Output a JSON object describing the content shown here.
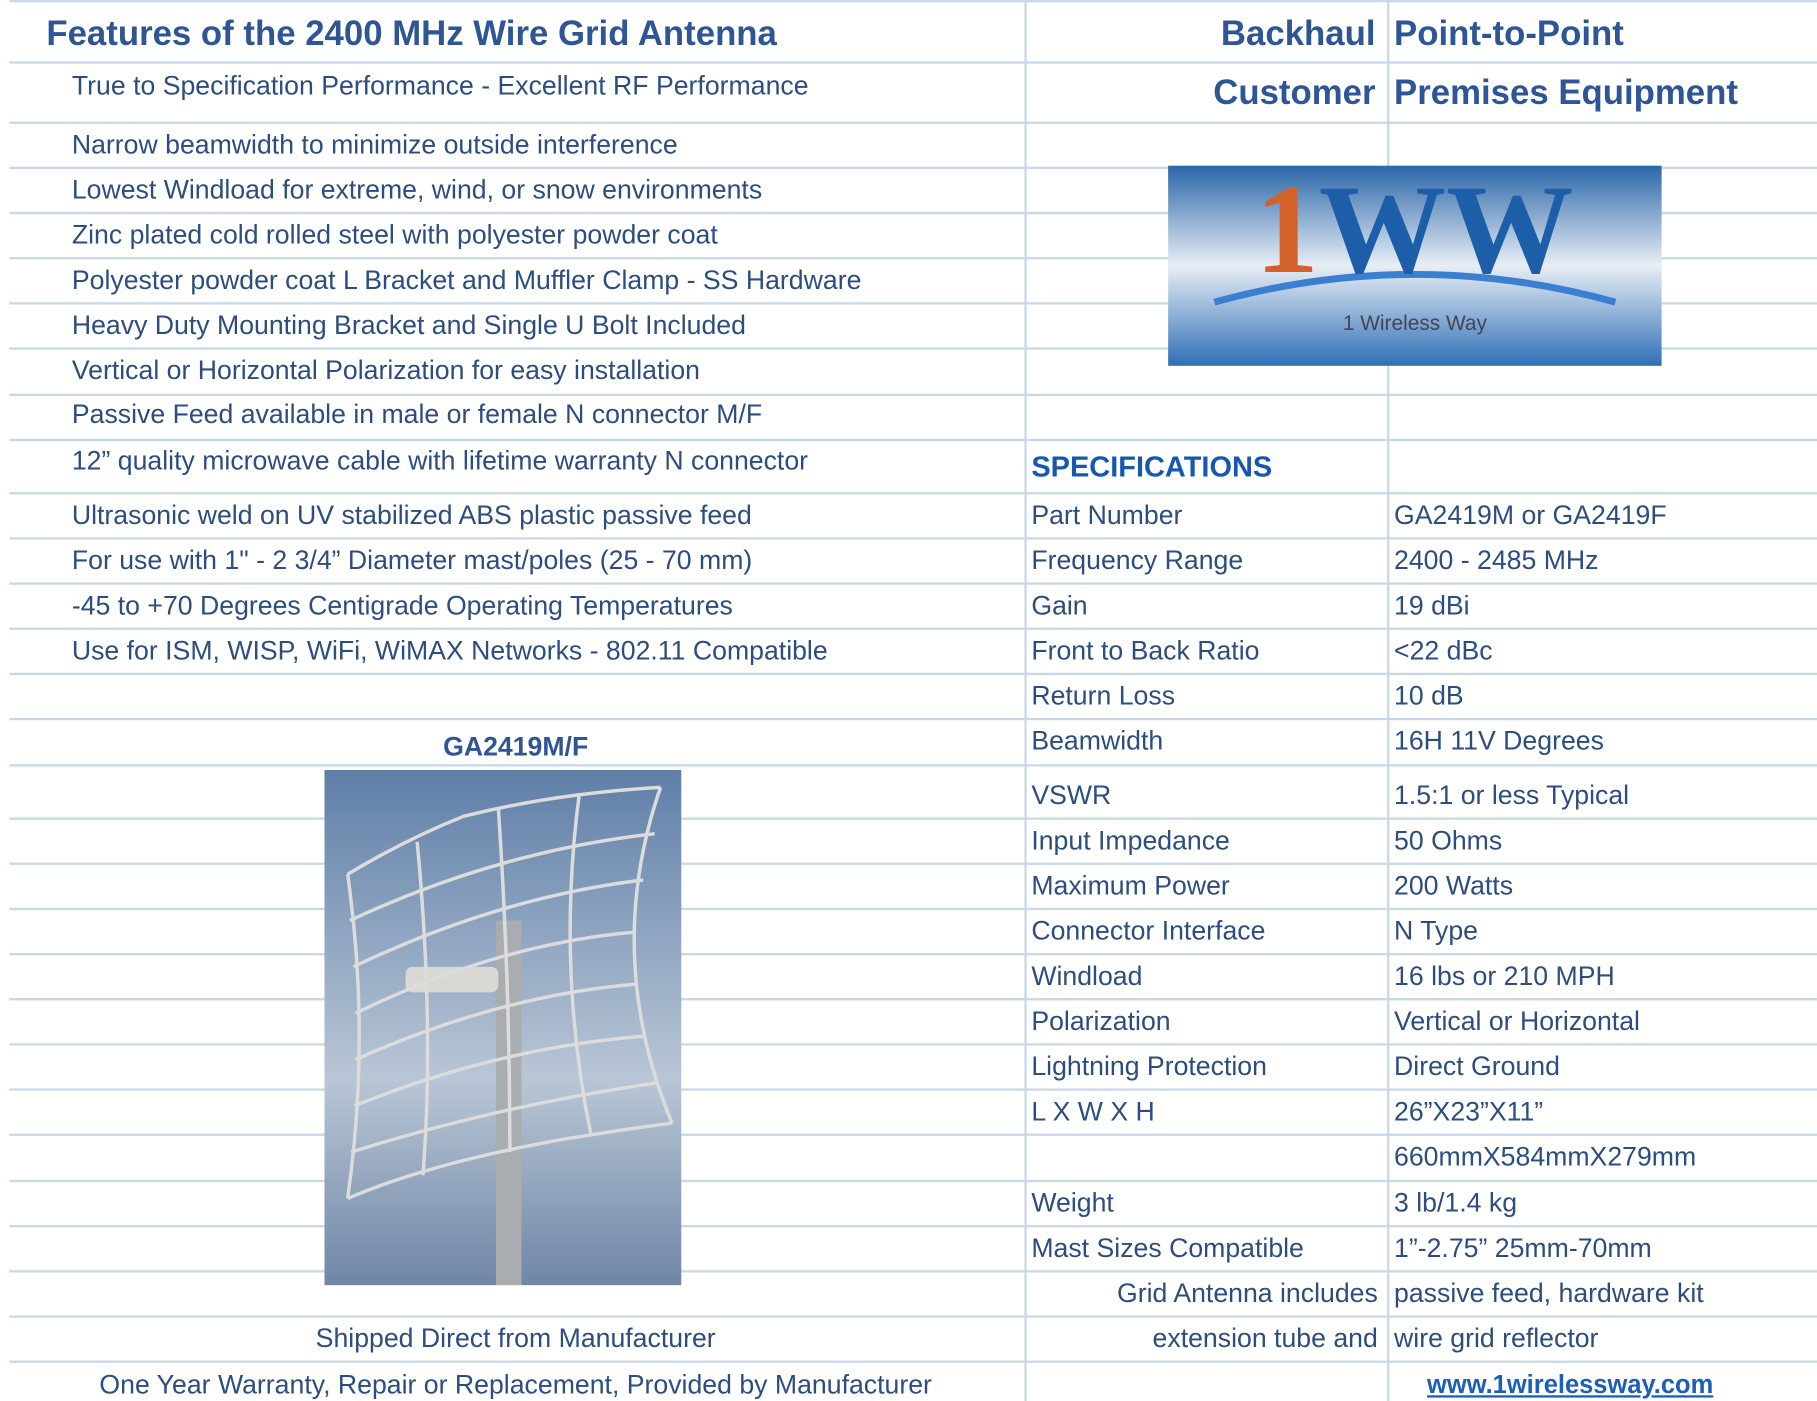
{
  "header": {
    "title": "Features of the 2400 MHz Wire Grid Antenna",
    "tags": [
      "Backhaul",
      "Point-to-Point",
      "Customer",
      "Premises Equipment"
    ]
  },
  "features": [
    "True to Specification Performance - Excellent RF Performance",
    "Narrow beamwidth to minimize outside interference",
    "Lowest Windload for extreme, wind, or snow environments",
    "Zinc plated cold rolled steel with polyester powder coat",
    "Polyester powder coat L Bracket and Muffler Clamp - SS Hardware",
    "Heavy Duty Mounting Bracket and Single U Bolt Included",
    "Vertical or Horizontal Polarization for easy installation",
    "Passive Feed available in male or female N connector  M/F",
    "12” quality microwave cable with lifetime warranty N connector",
    "Ultrasonic weld on UV stabilized ABS plastic passive feed",
    "For use with 1\" - 2 3/4” Diameter mast/poles (25 - 70 mm)",
    "-45 to +70 Degrees Centigrade Operating Temperatures",
    "Use for ISM, WISP, WiFi, WiMAX Networks - 802.11 Compatible"
  ],
  "logo": {
    "mark": "1WW",
    "tagline": "1 Wireless Way"
  },
  "product": {
    "model": "GA2419M/F",
    "shipping": "Shipped Direct from Manufacturer",
    "warranty": "One Year Warranty, Repair or Replacement, Provided by Manufacturer"
  },
  "specs": {
    "heading": "SPECIFICATIONS",
    "rows": [
      [
        "Part Number",
        "GA2419M or GA2419F"
      ],
      [
        "Frequency Range",
        "2400 - 2485 MHz"
      ],
      [
        "Gain",
        "19 dBi"
      ],
      [
        "Front to Back Ratio",
        "<22 dBc"
      ],
      [
        "Return Loss",
        "10 dB"
      ],
      [
        "Beamwidth",
        "16H 11V Degrees"
      ],
      [
        "VSWR",
        "1.5:1 or less Typical"
      ],
      [
        "Input Impedance",
        "50 Ohms"
      ],
      [
        "Maximum Power",
        "200 Watts"
      ],
      [
        "Connector Interface",
        "N Type"
      ],
      [
        "Windload",
        "16 lbs or 210 MPH"
      ],
      [
        "Polarization",
        "Vertical or Horizontal"
      ],
      [
        "Lightning Protection",
        "Direct Ground"
      ],
      [
        "L X W X H",
        "26”X23”X11”"
      ],
      [
        null,
        "660mmX584mmX279mm"
      ],
      [
        "Weight",
        "3 lb/1.4 kg"
      ],
      [
        "Mast Sizes Compatible",
        "1”-2.75”    25mm-70mm"
      ]
    ],
    "includes": [
      [
        "Grid Antenna includes",
        "passive feed, hardware kit"
      ],
      [
        "extension tube and",
        "wire grid reflector"
      ]
    ],
    "url": "www.1wirelessway.com"
  }
}
